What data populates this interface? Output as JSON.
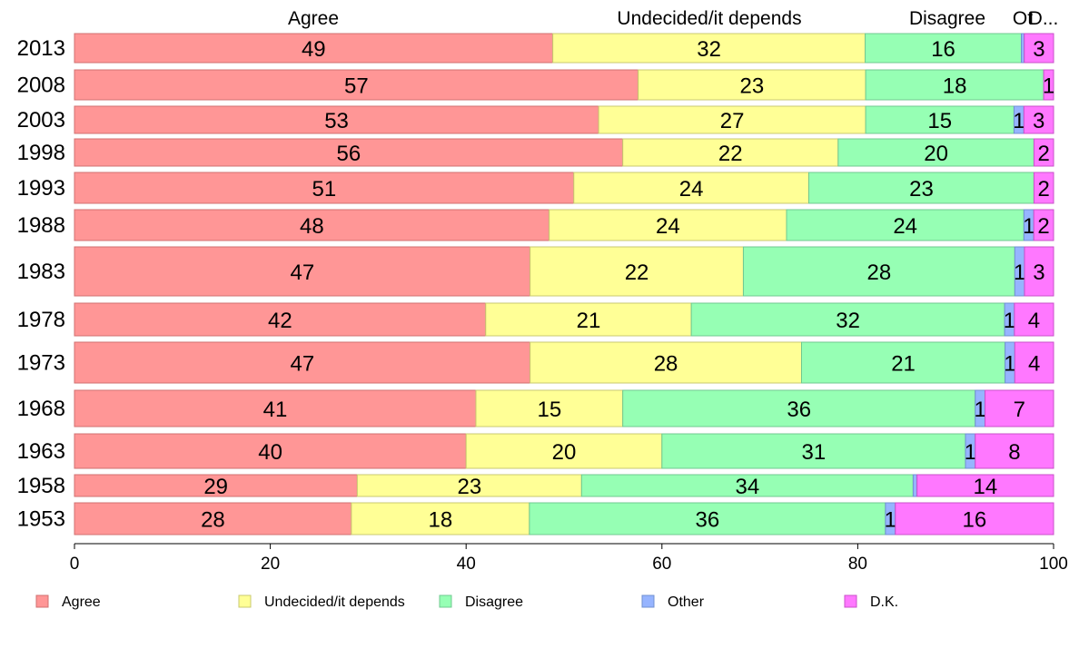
{
  "chart_data": {
    "type": "bar",
    "orientation": "horizontal",
    "stacked": true,
    "categories": [
      "2013",
      "2008",
      "2003",
      "1998",
      "1993",
      "1988",
      "1983",
      "1978",
      "1973",
      "1968",
      "1963",
      "1958",
      "1953"
    ],
    "series": [
      {
        "name": "Agree",
        "color": "#ff9696",
        "values": [
          49,
          57,
          53,
          56,
          51,
          48,
          47,
          42,
          47,
          41,
          40,
          29,
          28
        ]
      },
      {
        "name": "Undecided/it depends",
        "color": "#ffff96",
        "values": [
          32,
          23,
          27,
          22,
          24,
          24,
          22,
          21,
          28,
          15,
          20,
          23,
          18
        ]
      },
      {
        "name": "Disagree",
        "color": "#96ffb4",
        "values": [
          16,
          18,
          15,
          20,
          23,
          24,
          28,
          32,
          21,
          36,
          31,
          34,
          36
        ]
      },
      {
        "name": "Other",
        "color": "#96b4ff",
        "values": [
          0.3,
          0,
          1,
          0,
          0,
          1,
          1,
          1,
          1,
          1,
          1,
          0.4,
          1
        ]
      },
      {
        "name": "D.K.",
        "color": "#ff78ff",
        "values": [
          3,
          1,
          3,
          2,
          2,
          2,
          3,
          4,
          4,
          7,
          8,
          14,
          16
        ]
      }
    ],
    "segment_labels": [
      [
        "49",
        "32",
        "16",
        "",
        "3"
      ],
      [
        "57",
        "23",
        "18",
        "",
        "1"
      ],
      [
        "53",
        "27",
        "15",
        "1",
        "3"
      ],
      [
        "56",
        "22",
        "20",
        "",
        "2"
      ],
      [
        "51",
        "24",
        "23",
        "",
        "2"
      ],
      [
        "48",
        "24",
        "24",
        "1",
        "2"
      ],
      [
        "47",
        "22",
        "28",
        "1",
        "3"
      ],
      [
        "42",
        "21",
        "32",
        "1",
        "4"
      ],
      [
        "47",
        "28",
        "21",
        "1",
        "4"
      ],
      [
        "41",
        "15",
        "36",
        "1",
        "7"
      ],
      [
        "40",
        "20",
        "31",
        "1",
        "8"
      ],
      [
        "29",
        "23",
        "34",
        "",
        "14"
      ],
      [
        "28",
        "18",
        "36",
        "1",
        "16"
      ]
    ],
    "top_labels": [
      "Agree",
      "Undecided/it depends",
      "Disagree",
      "Ot",
      "D..."
    ],
    "x_ticks": [
      "0",
      "20",
      "40",
      "60",
      "80",
      "100"
    ],
    "xlim": [
      0,
      100
    ],
    "legend": {
      "position": "bottom",
      "entries": [
        "Agree",
        "Undecided/it depends",
        "Disagree",
        "Other",
        "D.K."
      ]
    }
  }
}
